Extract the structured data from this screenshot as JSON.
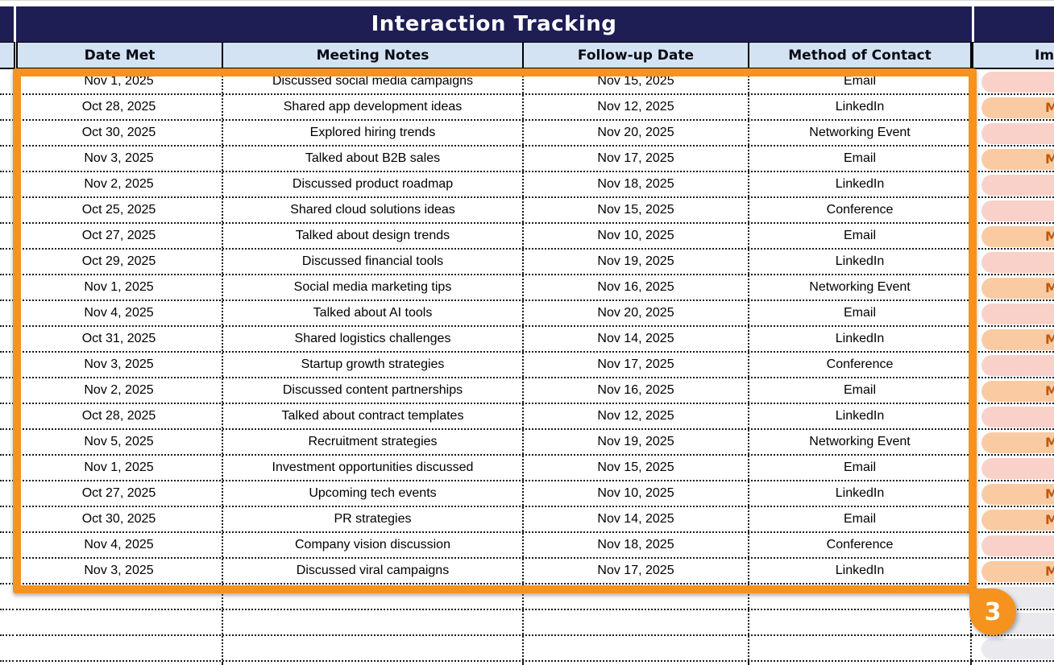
{
  "table": {
    "title": "Interaction Tracking",
    "columns": [
      "Date Met",
      "Meeting Notes",
      "Follow-up Date",
      "Method of Contact"
    ],
    "partial_right_column_header": "Im",
    "rows": [
      {
        "date_met": "Nov 1, 2025",
        "meeting_notes": "Discussed social media campaigns",
        "followup_date": "Nov 15, 2025",
        "method_of_contact": "Email",
        "importance": {
          "variant": "pink",
          "visible_label": ""
        }
      },
      {
        "date_met": "Oct 28, 2025",
        "meeting_notes": "Shared app development ideas",
        "followup_date": "Nov 12, 2025",
        "method_of_contact": "LinkedIn",
        "importance": {
          "variant": "peach",
          "visible_label": "M"
        }
      },
      {
        "date_met": "Oct 30, 2025",
        "meeting_notes": "Explored hiring trends",
        "followup_date": "Nov 20, 2025",
        "method_of_contact": "Networking Event",
        "importance": {
          "variant": "pink",
          "visible_label": ""
        }
      },
      {
        "date_met": "Nov 3, 2025",
        "meeting_notes": "Talked about B2B sales",
        "followup_date": "Nov 17, 2025",
        "method_of_contact": "Email",
        "importance": {
          "variant": "peach",
          "visible_label": "M"
        }
      },
      {
        "date_met": "Nov 2, 2025",
        "meeting_notes": "Discussed product roadmap",
        "followup_date": "Nov 18, 2025",
        "method_of_contact": "LinkedIn",
        "importance": {
          "variant": "pink",
          "visible_label": ""
        }
      },
      {
        "date_met": "Oct 25, 2025",
        "meeting_notes": "Shared cloud solutions ideas",
        "followup_date": "Nov 15, 2025",
        "method_of_contact": "Conference",
        "importance": {
          "variant": "pink",
          "visible_label": ""
        }
      },
      {
        "date_met": "Oct 27, 2025",
        "meeting_notes": "Talked about design trends",
        "followup_date": "Nov 10, 2025",
        "method_of_contact": "Email",
        "importance": {
          "variant": "peach",
          "visible_label": "M"
        }
      },
      {
        "date_met": "Oct 29, 2025",
        "meeting_notes": "Discussed financial tools",
        "followup_date": "Nov 19, 2025",
        "method_of_contact": "LinkedIn",
        "importance": {
          "variant": "pink",
          "visible_label": ""
        }
      },
      {
        "date_met": "Nov 1, 2025",
        "meeting_notes": "Social media marketing tips",
        "followup_date": "Nov 16, 2025",
        "method_of_contact": "Networking Event",
        "importance": {
          "variant": "peach",
          "visible_label": "M"
        }
      },
      {
        "date_met": "Nov 4, 2025",
        "meeting_notes": "Talked about AI tools",
        "followup_date": "Nov 20, 2025",
        "method_of_contact": "Email",
        "importance": {
          "variant": "pink",
          "visible_label": ""
        }
      },
      {
        "date_met": "Oct 31, 2025",
        "meeting_notes": "Shared logistics challenges",
        "followup_date": "Nov 14, 2025",
        "method_of_contact": "LinkedIn",
        "importance": {
          "variant": "peach",
          "visible_label": "M"
        }
      },
      {
        "date_met": "Nov 3, 2025",
        "meeting_notes": "Startup growth strategies",
        "followup_date": "Nov 17, 2025",
        "method_of_contact": "Conference",
        "importance": {
          "variant": "pink",
          "visible_label": ""
        }
      },
      {
        "date_met": "Nov 2, 2025",
        "meeting_notes": "Discussed content partnerships",
        "followup_date": "Nov 16, 2025",
        "method_of_contact": "Email",
        "importance": {
          "variant": "peach",
          "visible_label": "M"
        }
      },
      {
        "date_met": "Oct 28, 2025",
        "meeting_notes": "Talked about contract templates",
        "followup_date": "Nov 12, 2025",
        "method_of_contact": "LinkedIn",
        "importance": {
          "variant": "pink",
          "visible_label": ""
        }
      },
      {
        "date_met": "Nov 5, 2025",
        "meeting_notes": "Recruitment strategies",
        "followup_date": "Nov 19, 2025",
        "method_of_contact": "Networking Event",
        "importance": {
          "variant": "peach",
          "visible_label": "M"
        }
      },
      {
        "date_met": "Nov 1, 2025",
        "meeting_notes": "Investment opportunities discussed",
        "followup_date": "Nov 15, 2025",
        "method_of_contact": "Email",
        "importance": {
          "variant": "pink",
          "visible_label": ""
        }
      },
      {
        "date_met": "Oct 27, 2025",
        "meeting_notes": "Upcoming tech events",
        "followup_date": "Nov 10, 2025",
        "method_of_contact": "LinkedIn",
        "importance": {
          "variant": "peach",
          "visible_label": "M"
        }
      },
      {
        "date_met": "Oct 30, 2025",
        "meeting_notes": "PR strategies",
        "followup_date": "Nov 14, 2025",
        "method_of_contact": "Email",
        "importance": {
          "variant": "peach",
          "visible_label": "M"
        }
      },
      {
        "date_met": "Nov 4, 2025",
        "meeting_notes": "Company vision discussion",
        "followup_date": "Nov 18, 2025",
        "method_of_contact": "Conference",
        "importance": {
          "variant": "pink",
          "visible_label": ""
        }
      },
      {
        "date_met": "Nov 3, 2025",
        "meeting_notes": "Discussed viral campaigns",
        "followup_date": "Nov 17, 2025",
        "method_of_contact": "LinkedIn",
        "importance": {
          "variant": "peach",
          "visible_label": "M"
        }
      }
    ],
    "empty_row_count": 3,
    "empty_row_pill_variant": "gray"
  },
  "selection_overlay": {
    "badge_label": "3",
    "color": "#F6921E"
  },
  "colors": {
    "title_bg": "#1E1E55",
    "title_text": "#FFFFFF",
    "header_bg": "#D3E3F3",
    "header_text": "#0A0A14",
    "pill_pink": "#FAD1C9",
    "pill_peach": "#FACBA3",
    "pill_gray": "#E9E9EE",
    "pill_label_text": "#C2570A",
    "selection_orange": "#F6921E"
  }
}
